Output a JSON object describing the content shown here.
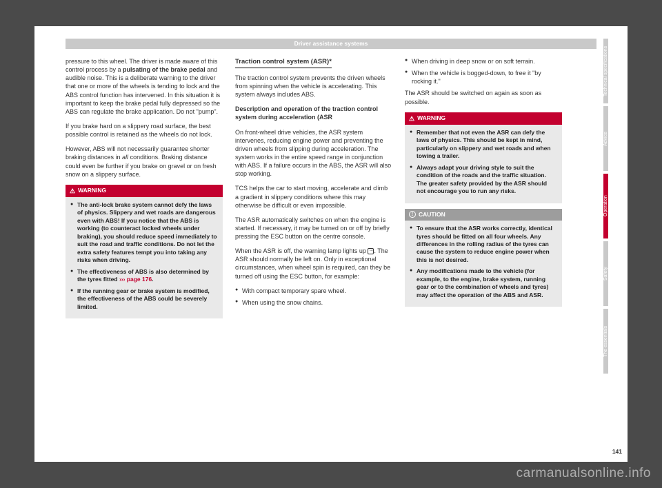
{
  "header": {
    "title": "Driver assistance systems"
  },
  "page_number": "141",
  "watermark": "carmanualsonline.info",
  "tabs": [
    {
      "label": "Technical specifications",
      "active": false
    },
    {
      "label": "Advice",
      "active": false
    },
    {
      "label": "Operation",
      "active": true
    },
    {
      "label": "Safety",
      "active": false
    },
    {
      "label": "The essentials",
      "active": false
    }
  ],
  "col1": {
    "p1a": "pressure to this wheel. The driver is made aware of this control process by a ",
    "p1b": "pulsating of the brake pedal",
    "p1c": " and audible noise. This is a deliberate warning to the driver that one or more of the wheels is tending to lock and the ABS control function has intervened. In this situation it is important to keep the brake pedal fully depressed so the ABS can regulate the brake application. Do not \"pump\".",
    "p2": "If you brake hard on a slippery road surface, the best possible control is retained as the wheels do not lock.",
    "p3a": "However, ABS will not necessarily guarantee shorter braking distances in ",
    "p3b": "all",
    "p3c": " conditions. Braking distance could even be further if you brake on gravel or on fresh snow on a slippery surface.",
    "warning": {
      "label": "WARNING",
      "b1": "The anti-lock brake system cannot defy the laws of physics. Slippery and wet roads are dangerous even with ABS! If you notice that the ABS is working (to counteract locked wheels under braking), you should reduce speed immediately to suit the road and traffic conditions. Do not let the extra safety features tempt you into taking any risks when driving.",
      "b2a": "The effectiveness of ABS is also determined by the tyres fitted ",
      "b2b": "››› page 176",
      "b2c": ".",
      "b3": "If the running gear or brake system is modified, the effectiveness of the ABS could be severely limited."
    }
  },
  "col2": {
    "title": "Traction control system (ASR)*",
    "p1": "The traction control system prevents the driven wheels from spinning when the vehicle is accelerating. This system always includes ABS.",
    "sub1": "Description and operation of the traction control system during acceleration (ASR",
    "p2": "On front-wheel drive vehicles, the ASR system intervenes, reducing engine power and preventing the driven wheels from slipping during acceleration. The system works in the entire speed range in conjunction with ABS. If a failure occurs in the ABS, the ASR will also stop working.",
    "p3": "TCS helps the car to start moving, accelerate and climb a gradient in slippery conditions where this may otherwise be difficult or even impossible.",
    "p4": "The ASR automatically switches on when the engine is started. If necessary, it may be turned on or off by briefly pressing the ESC button on the centre console.",
    "p5a": "When the ASR is off, the warning lamp lights up ",
    "p5b": ". The ASR should normally be left on. Only in exceptional circumstances, when wheel spin is required, can they be turned off using the ESC button, for example:",
    "b1": "With compact temporary spare wheel.",
    "b2": "When using the snow chains."
  },
  "col3": {
    "b1": "When driving in deep snow or on soft terrain.",
    "b2": "When the vehicle is bogged-down, to free it \"by rocking it.\"",
    "p1": "The ASR should be switched on again as soon as possible.",
    "warning": {
      "label": "WARNING",
      "b1": "Remember that not even the ASR can defy the laws of physics. This should be kept in mind, particularly on slippery and wet roads and when towing a trailer.",
      "b2": "Always adapt your driving style to suit the condition of the roads and the traffic situation. The greater safety provided by the ASR should not encourage you to run any risks."
    },
    "caution": {
      "label": "CAUTION",
      "b1": "To ensure that the ASR works correctly, identical tyres should be fitted on all four wheels. Any differences in the rolling radius of the tyres can cause the system to reduce engine power when this is not desired.",
      "b2": "Any modifications made to the vehicle (for example, to the engine, brake system, running gear or to the combination of wheels and tyres) may affect the operation of the ABS and ASR."
    }
  },
  "colors": {
    "page_bg": "#ffffff",
    "body_bg": "#4a4a4a",
    "bar_gray": "#c9c9c9",
    "red": "#c3002f",
    "box_body": "#e9e9e9",
    "tab_gray": "#c9c9c9"
  }
}
